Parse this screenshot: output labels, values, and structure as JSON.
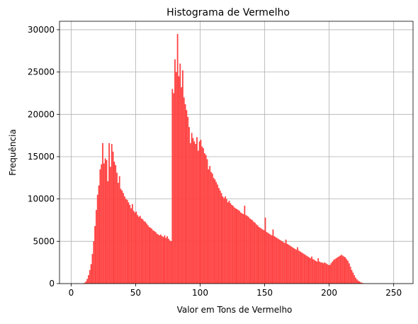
{
  "chart_data": {
    "type": "bar",
    "title": "Histograma de Vermelho",
    "xlabel": "Valor em Tons de Vermelho",
    "ylabel": "Frequência",
    "xlim": [
      -9,
      265
    ],
    "ylim": [
      0,
      31000
    ],
    "xticks": [
      0,
      50,
      100,
      150,
      200,
      250
    ],
    "yticks": [
      0,
      5000,
      10000,
      15000,
      20000,
      25000,
      30000
    ],
    "grid": true,
    "bar_color": "#ff4040",
    "bins_start": 0,
    "bin_width": 1,
    "values": [
      0,
      0,
      0,
      0,
      0,
      0,
      0,
      0,
      0,
      30,
      100,
      250,
      550,
      1000,
      1600,
      2300,
      3500,
      5000,
      6800,
      8700,
      10500,
      11600,
      13500,
      14100,
      16600,
      14200,
      14800,
      14600,
      12100,
      16600,
      13800,
      16500,
      15600,
      14400,
      14000,
      13100,
      11900,
      12700,
      11200,
      11000,
      10700,
      10300,
      10000,
      9900,
      9600,
      9300,
      8900,
      9400,
      8600,
      8400,
      8500,
      8100,
      7900,
      8000,
      7700,
      7600,
      7400,
      7300,
      7100,
      6900,
      6700,
      6600,
      6500,
      6300,
      6200,
      6100,
      5900,
      5800,
      5700,
      5800,
      5600,
      5500,
      5700,
      5400,
      5600,
      5300,
      5100,
      5000,
      23000,
      22500,
      26500,
      25000,
      29500,
      24500,
      26000,
      23200,
      25200,
      22000,
      21200,
      20500,
      19700,
      18500,
      16600,
      17800,
      17200,
      16800,
      16500,
      17300,
      15700,
      16800,
      17000,
      16200,
      16000,
      15400,
      15200,
      14700,
      13500,
      13900,
      13200,
      13000,
      12500,
      12300,
      12000,
      11700,
      11300,
      11000,
      10700,
      10300,
      10100,
      10300,
      10000,
      9600,
      9800,
      9500,
      9300,
      9200,
      9000,
      8900,
      8800,
      8700,
      8600,
      8400,
      8300,
      8200,
      9200,
      8100,
      8000,
      7900,
      7700,
      7600,
      7500,
      7300,
      7200,
      7000,
      6900,
      6700,
      6600,
      6500,
      6400,
      6300,
      7800,
      6100,
      6000,
      5900,
      5800,
      5700,
      6400,
      5600,
      5500,
      5400,
      5300,
      5200,
      5100,
      5000,
      4900,
      4800,
      5200,
      4700,
      4600,
      4500,
      4400,
      4300,
      4200,
      4100,
      4000,
      4300,
      3900,
      3800,
      3700,
      3600,
      3500,
      3400,
      3300,
      3200,
      3100,
      3000,
      3200,
      2900,
      2800,
      2700,
      2600,
      3000,
      2600,
      2500,
      2500,
      2400,
      2500,
      2400,
      2300,
      2200,
      2200,
      2400,
      2600,
      2800,
      2900,
      3000,
      3100,
      3200,
      3300,
      3400,
      3300,
      3200,
      3100,
      2900,
      2700,
      2400,
      2000,
      1600,
      1300,
      1000,
      700,
      500,
      350,
      250,
      150,
      100,
      50,
      20,
      5,
      0,
      0,
      0,
      0,
      0,
      0,
      0,
      0,
      0,
      0,
      0,
      0,
      0,
      0,
      0,
      0,
      0,
      0,
      0,
      0,
      0,
      0,
      0,
      0,
      0,
      0,
      0
    ]
  }
}
